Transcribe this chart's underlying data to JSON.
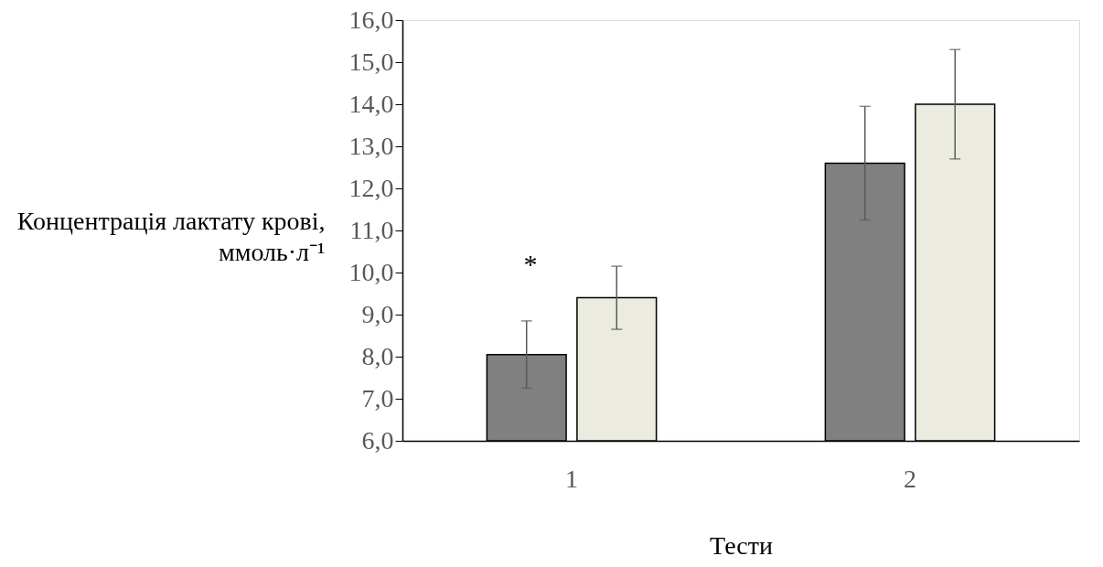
{
  "chart_data": {
    "type": "bar",
    "xlabel": "Тести",
    "ylabel": "Концентрація лактату крові, ммоль·л⁻¹",
    "categories": [
      "1",
      "2"
    ],
    "series": [
      {
        "color": "#808080",
        "values": [
          8.05,
          12.6
        ],
        "errors": [
          0.8,
          1.35
        ]
      },
      {
        "color": "#ecebe0",
        "values": [
          9.4,
          14.0
        ],
        "errors": [
          0.75,
          1.3
        ]
      }
    ],
    "ylim": [
      6,
      16
    ],
    "yticks": [
      {
        "value": 6,
        "label": "6,0"
      },
      {
        "value": 7,
        "label": "7,0"
      },
      {
        "value": 8,
        "label": "8,0"
      },
      {
        "value": 9,
        "label": "9,0"
      },
      {
        "value": 10,
        "label": "10,0"
      },
      {
        "value": 11,
        "label": "11,0"
      },
      {
        "value": 12,
        "label": "12,0"
      },
      {
        "value": 13,
        "label": "13,0"
      },
      {
        "value": 14,
        "label": "14,0"
      },
      {
        "value": 15,
        "label": "15,0"
      },
      {
        "value": 16,
        "label": "16,0"
      }
    ],
    "annotations": [
      "*"
    ]
  }
}
